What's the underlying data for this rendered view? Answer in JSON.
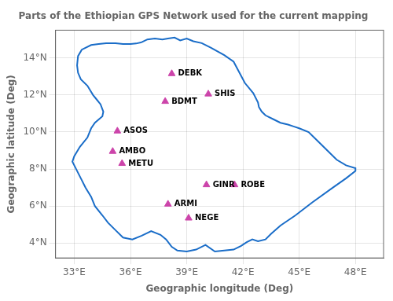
{
  "chart_data": {
    "type": "scatter",
    "title": "Parts of the Ethiopian GPS Network used for the current mapping",
    "xlabel": "Geographic longitude (Deg)",
    "ylabel": "Geographic latitude (Deg)",
    "xlim": [
      32.0,
      49.5
    ],
    "ylim": [
      3.2,
      15.5
    ],
    "xticks": [
      {
        "value": 33,
        "label": "33°E"
      },
      {
        "value": 36,
        "label": "36°E"
      },
      {
        "value": 39,
        "label": "39°E"
      },
      {
        "value": 42,
        "label": "42°E"
      },
      {
        "value": 45,
        "label": "45°E"
      },
      {
        "value": 48,
        "label": "48°E"
      }
    ],
    "yticks": [
      {
        "value": 4,
        "label": "4°N"
      },
      {
        "value": 6,
        "label": "6°N"
      },
      {
        "value": 8,
        "label": "8°N"
      },
      {
        "value": 10,
        "label": "10°N"
      },
      {
        "value": 12,
        "label": "12°N"
      },
      {
        "value": 14,
        "label": "14°N"
      }
    ],
    "grid": true,
    "series": [
      {
        "type": "line",
        "color": "#1a6dc8",
        "line_style": "solid",
        "x": [
          36.6,
          36.9,
          37.3,
          37.7,
          38.0,
          38.35,
          38.65,
          39.0,
          39.35,
          39.8,
          40.3,
          41.0,
          41.5,
          42.1,
          42.55,
          42.8,
          42.85,
          43.0,
          43.2,
          43.6,
          44.0,
          44.4,
          44.7,
          45.0,
          45.5,
          46.0,
          46.5,
          47.0,
          47.5,
          48.0,
          48.0,
          47.5,
          46.8,
          45.7,
          44.8,
          44.0,
          43.5,
          43.2,
          42.8,
          42.5,
          42.2,
          41.9,
          41.5,
          41.0,
          40.5,
          40.0,
          39.5,
          39.0,
          38.5,
          38.2,
          37.9,
          37.6,
          37.1,
          36.6,
          36.1,
          35.6,
          35.2,
          34.8,
          34.5,
          34.1,
          33.9,
          33.6,
          33.35,
          33.1,
          32.9,
          33.0,
          33.3,
          33.7,
          33.9,
          34.1,
          34.5,
          34.55,
          34.4,
          34.2,
          34.0,
          33.7,
          33.35,
          33.2,
          33.15,
          33.2,
          33.4,
          33.9,
          34.3,
          34.7,
          35.2,
          35.6,
          36.0,
          36.3,
          36.6
        ],
        "values": [
          14.85,
          15.0,
          15.05,
          15.0,
          15.05,
          15.1,
          14.95,
          15.05,
          14.9,
          14.8,
          14.55,
          14.15,
          13.8,
          12.65,
          12.1,
          11.6,
          11.35,
          11.1,
          10.9,
          10.7,
          10.5,
          10.4,
          10.3,
          10.2,
          10.0,
          9.5,
          9.0,
          8.5,
          8.2,
          8.05,
          7.9,
          7.5,
          7.0,
          6.2,
          5.5,
          4.95,
          4.5,
          4.2,
          4.1,
          4.2,
          4.05,
          3.85,
          3.65,
          3.6,
          3.55,
          3.9,
          3.65,
          3.55,
          3.6,
          3.8,
          4.2,
          4.45,
          4.65,
          4.4,
          4.2,
          4.3,
          4.7,
          5.1,
          5.5,
          6.0,
          6.5,
          7.0,
          7.5,
          8.0,
          8.4,
          8.7,
          9.2,
          9.7,
          10.2,
          10.5,
          10.85,
          11.1,
          11.5,
          11.75,
          12.0,
          12.5,
          12.85,
          13.2,
          13.6,
          14.1,
          14.45,
          14.7,
          14.75,
          14.8,
          14.8,
          14.75,
          14.75,
          14.78,
          14.85
        ]
      },
      {
        "type": "scatter",
        "color": "#cc44aa",
        "marker": "triangle",
        "x": [
          38.2,
          40.15,
          37.85,
          35.3,
          35.05,
          35.55,
          40.05,
          41.55,
          38.0,
          39.1
        ],
        "values": [
          13.15,
          12.05,
          11.65,
          10.05,
          8.95,
          8.3,
          7.15,
          7.15,
          6.1,
          5.35
        ]
      }
    ],
    "annotations": [
      {
        "text": "DEBK",
        "x": 38.2,
        "y": 13.15
      },
      {
        "text": "SHIS",
        "x": 40.15,
        "y": 12.05
      },
      {
        "text": "BDMT",
        "x": 37.85,
        "y": 11.65
      },
      {
        "text": "ASOS",
        "x": 35.3,
        "y": 10.05
      },
      {
        "text": "AMBO",
        "x": 35.05,
        "y": 8.95
      },
      {
        "text": "METU",
        "x": 35.55,
        "y": 8.3
      },
      {
        "text": "GINR",
        "x": 40.05,
        "y": 7.15
      },
      {
        "text": "ROBE",
        "x": 41.55,
        "y": 7.15
      },
      {
        "text": "ARMI",
        "x": 38.0,
        "y": 6.1
      },
      {
        "text": "NEGE",
        "x": 39.1,
        "y": 5.35
      }
    ]
  }
}
